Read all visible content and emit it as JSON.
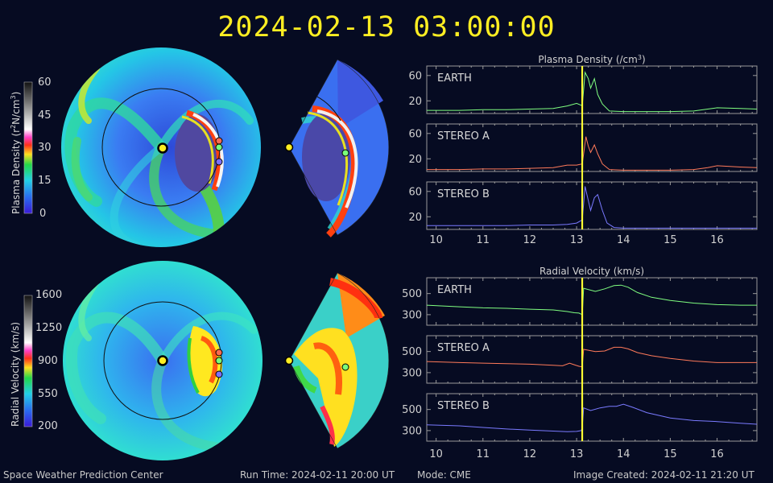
{
  "header": {
    "datetime": "2024-02-13 03:00:00"
  },
  "colorbars": {
    "density": {
      "label_prefix": "Plasma Density (r",
      "label_suffix": "N/cm",
      "ticks": [
        "60",
        "45",
        "30",
        "15",
        "0"
      ]
    },
    "velocity": {
      "label": "Radial Velocity (km/s)",
      "ticks": [
        "1600",
        "1250",
        "900",
        "550",
        "200"
      ]
    }
  },
  "footer": {
    "center": "Space Weather Prediction Center",
    "run_time": "Run Time: 2024-02-11 20:00 UT",
    "mode": "Mode: CME",
    "created": "Image Created: 2024-02-11 21:20 UT"
  },
  "colors": {
    "earth": "#80ff80",
    "stereo_a": "#ff7a5a",
    "stereo_b": "#7a7aff",
    "current_time": "#ffff33",
    "frame": "#9a9a9a",
    "background": "#060b22"
  },
  "chart_data": [
    {
      "type": "line",
      "title": "Plasma Density (/cm3)",
      "xlim": [
        9.8,
        16.85
      ],
      "x_ticks": [
        10,
        11,
        12,
        13,
        14,
        15,
        16
      ],
      "current_time": 13.12,
      "panels": [
        {
          "name": "EARTH",
          "ylim": [
            0,
            75
          ],
          "yticks": [
            20,
            60
          ],
          "x": [
            9.8,
            10.5,
            11,
            11.5,
            12,
            12.5,
            12.8,
            13.0,
            13.1,
            13.12,
            13.18,
            13.25,
            13.3,
            13.38,
            13.45,
            13.55,
            13.7,
            14,
            14.5,
            15,
            15.5,
            15.8,
            16,
            16.5,
            16.85
          ],
          "y": [
            5,
            5,
            6,
            6,
            7,
            8,
            12,
            16,
            13,
            12,
            65,
            55,
            40,
            55,
            30,
            15,
            4,
            3,
            3,
            3,
            4,
            7,
            9,
            8,
            7
          ]
        },
        {
          "name": "STEREO A",
          "ylim": [
            0,
            75
          ],
          "yticks": [
            20,
            60
          ],
          "x": [
            9.8,
            10.5,
            11,
            11.5,
            12,
            12.5,
            12.8,
            13.0,
            13.12,
            13.2,
            13.25,
            13.3,
            13.38,
            13.45,
            13.55,
            13.7,
            14,
            14.5,
            15,
            15.5,
            15.8,
            16,
            16.5,
            16.85
          ],
          "y": [
            3,
            3,
            4,
            4,
            5,
            6,
            10,
            10,
            12,
            55,
            40,
            30,
            42,
            28,
            12,
            3,
            2,
            2,
            2,
            3,
            6,
            9,
            7,
            6
          ]
        },
        {
          "name": "STEREO B",
          "ylim": [
            0,
            75
          ],
          "yticks": [
            20,
            60
          ],
          "x": [
            9.8,
            10.5,
            11,
            11.5,
            12,
            12.5,
            12.8,
            13.0,
            13.12,
            13.18,
            13.22,
            13.3,
            13.38,
            13.45,
            13.55,
            13.65,
            13.8,
            14,
            14.5,
            15,
            15.5,
            16,
            16.5,
            16.85
          ],
          "y": [
            6,
            6,
            6,
            6,
            7,
            7,
            8,
            10,
            15,
            68,
            55,
            30,
            50,
            55,
            30,
            10,
            3,
            2,
            2,
            2,
            2,
            2,
            2,
            2
          ]
        }
      ]
    },
    {
      "type": "line",
      "title": "Radial Velocity (km/s)",
      "xlim": [
        9.8,
        16.85
      ],
      "x_ticks": [
        10,
        11,
        12,
        13,
        14,
        15,
        16
      ],
      "current_time": 13.12,
      "panels": [
        {
          "name": "EARTH",
          "ylim": [
            200,
            650
          ],
          "yticks": [
            300,
            500
          ],
          "x": [
            9.8,
            10.5,
            11,
            11.5,
            12,
            12.5,
            12.8,
            12.95,
            13.05,
            13.12,
            13.15,
            13.4,
            13.6,
            13.8,
            13.95,
            14.1,
            14.3,
            14.6,
            15,
            15.5,
            16,
            16.5,
            16.85
          ],
          "y": [
            390,
            375,
            365,
            360,
            352,
            345,
            330,
            318,
            315,
            300,
            550,
            520,
            545,
            575,
            580,
            560,
            510,
            465,
            435,
            410,
            395,
            390,
            390
          ]
        },
        {
          "name": "STEREO A",
          "ylim": [
            200,
            650
          ],
          "yticks": [
            300,
            500
          ],
          "x": [
            9.8,
            10.5,
            11,
            11.5,
            12,
            12.5,
            12.7,
            12.85,
            12.95,
            13.05,
            13.12,
            13.15,
            13.4,
            13.6,
            13.8,
            13.95,
            14.1,
            14.3,
            14.6,
            15,
            15.5,
            16,
            16.5,
            16.85
          ],
          "y": [
            405,
            395,
            390,
            385,
            380,
            370,
            365,
            390,
            375,
            360,
            355,
            520,
            500,
            505,
            540,
            540,
            525,
            490,
            460,
            435,
            410,
            395,
            395,
            395
          ]
        },
        {
          "name": "STEREO B",
          "ylim": [
            200,
            650
          ],
          "yticks": [
            300,
            500
          ],
          "x": [
            9.8,
            10.5,
            11,
            11.5,
            12,
            12.5,
            12.8,
            13.0,
            13.1,
            13.12,
            13.15,
            13.3,
            13.5,
            13.7,
            13.85,
            14.0,
            14.2,
            14.5,
            15,
            15.5,
            16,
            16.5,
            16.85
          ],
          "y": [
            355,
            345,
            330,
            315,
            305,
            295,
            290,
            292,
            300,
            330,
            515,
            490,
            515,
            530,
            530,
            550,
            520,
            470,
            420,
            395,
            385,
            370,
            360
          ]
        }
      ]
    }
  ]
}
